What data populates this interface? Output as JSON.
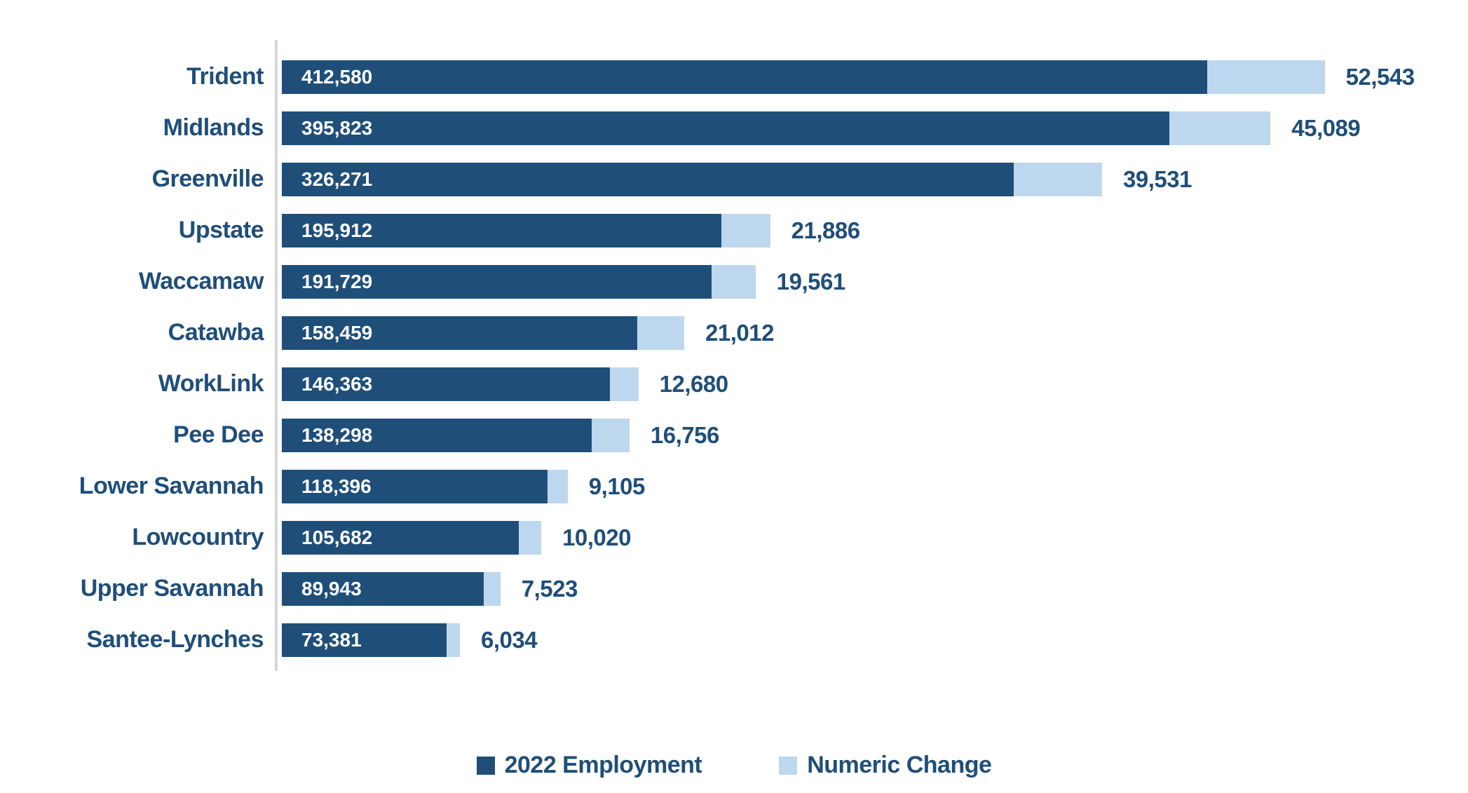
{
  "chart_data": {
    "type": "bar",
    "orientation": "horizontal",
    "stacked": true,
    "title": "",
    "xlabel": "",
    "ylabel": "",
    "grid": false,
    "legend_position": "bottom",
    "xlim": [
      0,
      529000
    ],
    "categories": [
      "Trident",
      "Midlands",
      "Greenville",
      "Upstate",
      "Waccamaw",
      "Catawba",
      "WorkLink",
      "Pee Dee",
      "Lower Savannah",
      "Lowcountry",
      "Upper Savannah",
      "Santee-Lynches"
    ],
    "series": [
      {
        "name": "2022 Employment",
        "color": "#1F4E79",
        "label_position": "inside-start",
        "label_color": "#FFFFFF",
        "values": [
          412580,
          395823,
          326271,
          195912,
          191729,
          158459,
          146363,
          138298,
          118396,
          105682,
          89943,
          73381
        ]
      },
      {
        "name": "Numeric Change",
        "color": "#BDD7EE",
        "label_position": "outside-end",
        "label_color": "#1F4E79",
        "values": [
          52543,
          45089,
          39531,
          21886,
          19561,
          21012,
          12680,
          16756,
          9105,
          10020,
          7523,
          6034
        ]
      }
    ],
    "value_label_format": "#,##0",
    "axis_line_color": "#D6D6D6",
    "category_label_color": "#1F4E79"
  }
}
